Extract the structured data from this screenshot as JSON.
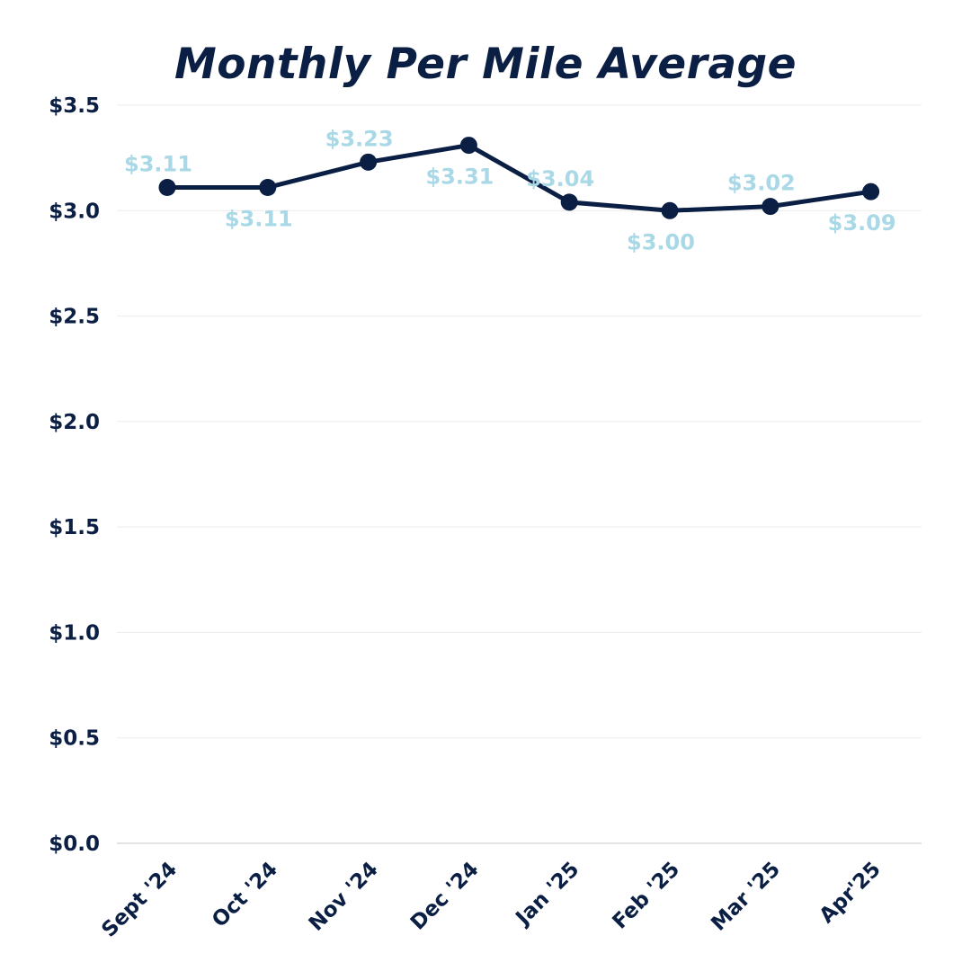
{
  "chart_data": {
    "type": "line",
    "title": "Monthly Per Mile Average",
    "xlabel": "",
    "ylabel": "",
    "categories": [
      "Sept '24",
      "Oct '24",
      "Nov '24",
      "Dec '24",
      "Jan '25",
      "Feb '25",
      "Mar '25",
      "Apr'25"
    ],
    "series": [
      {
        "values": [
          3.11,
          3.11,
          3.23,
          3.31,
          3.04,
          3.0,
          3.02,
          3.09
        ],
        "labels": [
          "$3.11",
          "$3.11",
          "$3.23",
          "$3.31",
          "$3.04",
          "$3.00",
          "$3.02",
          "$3.09"
        ],
        "label_positions": [
          "above",
          "below",
          "above",
          "below",
          "above",
          "below",
          "above",
          "below"
        ]
      }
    ],
    "yticks": [
      0.0,
      0.5,
      1.0,
      1.5,
      2.0,
      2.5,
      3.0,
      3.5
    ],
    "ytick_labels": [
      "$0.0",
      "$0.5",
      "$1.0",
      "$1.5",
      "$2.0",
      "$2.5",
      "$3.0",
      "$3.5"
    ],
    "ylim": [
      0,
      3.5
    ],
    "grid": true,
    "legend": "none",
    "colors": {
      "title": "#0b1f44",
      "line": "#0b1f44",
      "marker": "#0b1f44",
      "axis_text": "#0b1f44",
      "data_label": "#a9d8e6",
      "grid": "#ebebeb",
      "axis_line": "#dcdcdc"
    }
  }
}
